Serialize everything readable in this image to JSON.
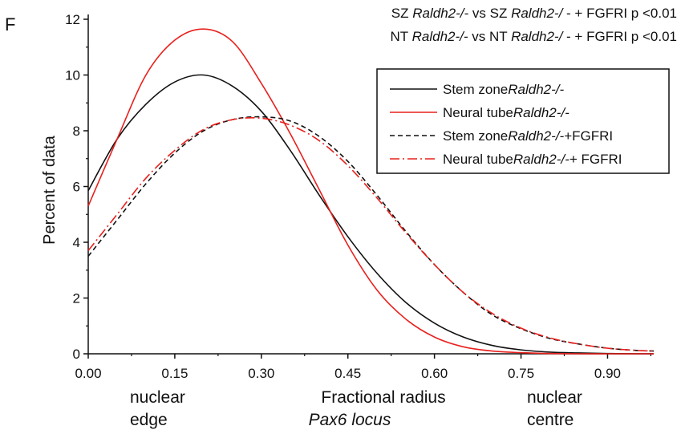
{
  "panel_label": "F",
  "stats": [
    {
      "prefix": "SZ ",
      "g1": "Raldh2-/-",
      "mid": " vs SZ ",
      "g2": "Raldh2-/",
      "suffix": " - + FGFRI p <0.01"
    },
    {
      "prefix": "NT ",
      "g1": "Raldh2-/-",
      "mid": " vs NT ",
      "g2": "Raldh2-/",
      "suffix": " - + FGFRI p <0.01"
    }
  ],
  "annotations": {
    "left_line1": "nuclear",
    "left_line2": "edge",
    "center_line1": "Fractional radius",
    "center_line2": "Pax6 locus",
    "right_line1": "nuclear",
    "right_line2": "centre"
  },
  "colors": {
    "black": "#111111",
    "red": "#e8201c"
  },
  "chart_data": {
    "type": "line",
    "ylabel": "Percent of data",
    "xlabel": "Fractional radius Pax6 locus",
    "xlim": [
      0,
      0.98
    ],
    "ylim": [
      0,
      12
    ],
    "xticks": [
      "0.00",
      "0.15",
      "0.30",
      "0.45",
      "0.60",
      "0.75",
      "0.90"
    ],
    "yticks": [
      "0",
      "2",
      "4",
      "6",
      "8",
      "10",
      "12"
    ],
    "grid": false,
    "legend_position": "right",
    "x": [
      0.0,
      0.05,
      0.1,
      0.15,
      0.2,
      0.25,
      0.3,
      0.35,
      0.4,
      0.45,
      0.5,
      0.55,
      0.6,
      0.65,
      0.7,
      0.75,
      0.8,
      0.85,
      0.9,
      0.95,
      0.98
    ],
    "series": [
      {
        "name_plain": "Stem zone",
        "name_italic": "Raldh2-/-",
        "name_suffix": "",
        "color": "#111111",
        "dash": "solid",
        "values": [
          5.85,
          7.7,
          8.95,
          9.75,
          10.0,
          9.6,
          8.7,
          7.3,
          5.7,
          4.2,
          2.9,
          1.85,
          1.1,
          0.6,
          0.3,
          0.14,
          0.06,
          0.03,
          0.01,
          0.0,
          0.0
        ]
      },
      {
        "name_plain": "Neural tube",
        "name_italic": "Raldh2-/-",
        "name_suffix": "",
        "color": "#e8201c",
        "dash": "solid",
        "values": [
          5.3,
          7.7,
          10.0,
          11.25,
          11.65,
          11.2,
          9.7,
          7.9,
          5.9,
          3.9,
          2.3,
          1.25,
          0.6,
          0.25,
          0.1,
          0.04,
          0.01,
          0.0,
          0.0,
          0.0,
          0.0
        ]
      },
      {
        "name_plain": "Stem zone",
        "name_italic": "Raldh2-/-",
        "name_suffix": "+FGFRI",
        "color": "#111111",
        "dash": "dashed",
        "values": [
          3.5,
          4.8,
          6.1,
          7.2,
          8.0,
          8.4,
          8.5,
          8.35,
          7.8,
          6.9,
          5.7,
          4.4,
          3.2,
          2.2,
          1.4,
          0.9,
          0.55,
          0.35,
          0.2,
          0.12,
          0.1
        ]
      },
      {
        "name_plain": "Neural tube",
        "name_italic": "Raldh2-/-",
        "name_suffix": "+ FGFRI",
        "color": "#e8201c",
        "dash": "dashdot",
        "values": [
          3.7,
          5.0,
          6.3,
          7.3,
          8.05,
          8.4,
          8.45,
          8.2,
          7.65,
          6.75,
          5.6,
          4.35,
          3.2,
          2.2,
          1.45,
          0.92,
          0.57,
          0.35,
          0.2,
          0.12,
          0.1
        ]
      }
    ]
  }
}
